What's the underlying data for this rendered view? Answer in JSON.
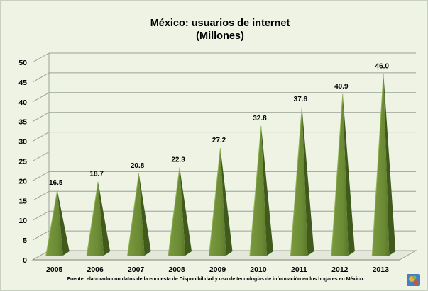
{
  "chart_data": {
    "type": "bar",
    "title": "México: usuarios de internet",
    "subtitle": "(Millones)",
    "categories": [
      "2005",
      "2006",
      "2007",
      "2008",
      "2009",
      "2010",
      "2011",
      "2012",
      "2013"
    ],
    "values": [
      16.5,
      18.7,
      20.8,
      22.3,
      27.2,
      32.8,
      37.6,
      40.9,
      46.0
    ],
    "value_labels": [
      "16.5",
      "18.7",
      "20.8",
      "22.3",
      "27.2",
      "32.8",
      "37.6",
      "40.9",
      "46.0"
    ],
    "ylim": [
      0,
      50
    ],
    "yticks": [
      0,
      5,
      10,
      15,
      20,
      25,
      30,
      35,
      40,
      45,
      50
    ],
    "grid": true,
    "legend": "none",
    "bar_shape": "pyramid",
    "colors": {
      "bar": "#6b8a34",
      "bar_dark": "#3f5a1b",
      "bar_light": "#94b457",
      "background": "#eef3e4",
      "grid": "#9aa396"
    },
    "footnote": "Fuente: elaborado con datos de la encuesta de Disponibilidad y uso de tecnologías de información en los hogares en México."
  }
}
